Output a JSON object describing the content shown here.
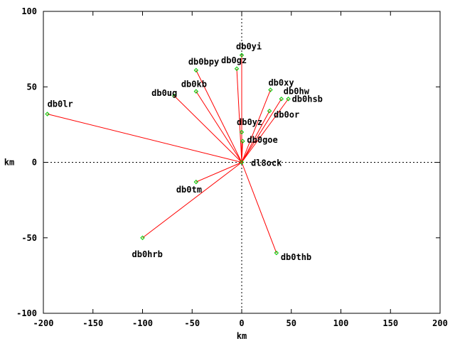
{
  "chart_data": {
    "type": "scatter",
    "title": "",
    "xlabel": "km",
    "ylabel": "km",
    "xlim": [
      -200,
      200
    ],
    "ylim": [
      -100,
      100
    ],
    "x_ticks": [
      "-200",
      "-150",
      "-100",
      "-50",
      "0",
      "50",
      "100",
      "150",
      "200"
    ],
    "y_ticks": [
      "-100",
      "-50",
      "0",
      "50",
      "100"
    ],
    "grid": false,
    "zero_axes": true,
    "colors": {
      "line": "#ff0000",
      "point": "#00cc00",
      "zero_axes": "#000000",
      "frame": "#000000"
    },
    "center": {
      "name": "dl8ock",
      "x": 0,
      "y": 0
    },
    "points": [
      {
        "name": "db0yi",
        "x": 0,
        "y": 71
      },
      {
        "name": "db0gz",
        "x": -5,
        "y": 62
      },
      {
        "name": "db0bpy",
        "x": -46,
        "y": 61
      },
      {
        "name": "db0kb",
        "x": -46,
        "y": 47
      },
      {
        "name": "db0ug",
        "x": -68,
        "y": 44
      },
      {
        "name": "db0lr",
        "x": -196,
        "y": 32
      },
      {
        "name": "db0xy",
        "x": 29,
        "y": 48
      },
      {
        "name": "db0hw",
        "x": 40,
        "y": 42
      },
      {
        "name": "db0hsb",
        "x": 47,
        "y": 42
      },
      {
        "name": "db0or",
        "x": 28,
        "y": 34
      },
      {
        "name": "db0yz",
        "x": 0,
        "y": 20
      },
      {
        "name": "db0goe",
        "x": 1,
        "y": 14
      },
      {
        "name": "db0tm",
        "x": -46,
        "y": -13
      },
      {
        "name": "db0hrb",
        "x": -100,
        "y": -50
      },
      {
        "name": "db0thb",
        "x": 35,
        "y": -60
      }
    ]
  }
}
